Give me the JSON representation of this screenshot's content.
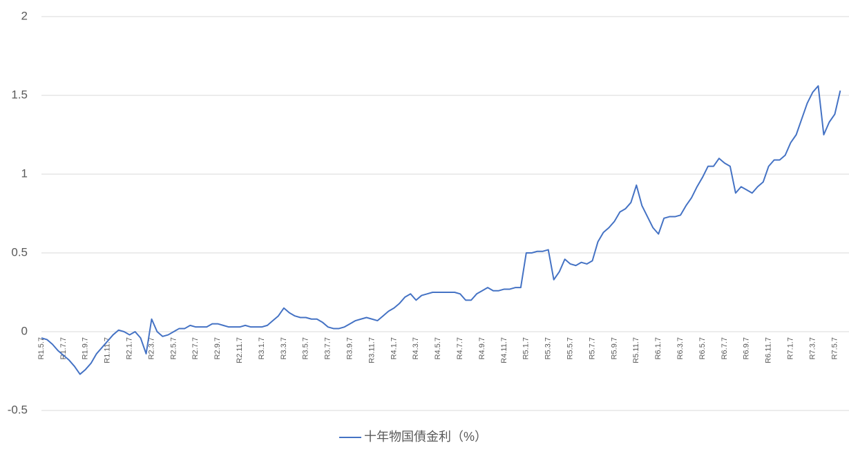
{
  "chart_data": {
    "type": "line",
    "categories": [
      "R1.5.7",
      null,
      null,
      null,
      "R1.7.7",
      null,
      null,
      null,
      "R1.9.7",
      null,
      null,
      null,
      "R1.11.7",
      null,
      null,
      null,
      "R2.1.7",
      null,
      null,
      null,
      "R2.3.7",
      null,
      null,
      null,
      "R2.5.7",
      null,
      null,
      null,
      "R2.7.7",
      null,
      null,
      null,
      "R2.9.7",
      null,
      null,
      null,
      "R2.11.7",
      null,
      null,
      null,
      "R3.1.7",
      null,
      null,
      null,
      "R3.3.7",
      null,
      null,
      null,
      "R3.5.7",
      null,
      null,
      null,
      "R3.7.7",
      null,
      null,
      null,
      "R3.9.7",
      null,
      null,
      null,
      "R3.11.7",
      null,
      null,
      null,
      "R4.1.7",
      null,
      null,
      null,
      "R4.3.7",
      null,
      null,
      null,
      "R4.5.7",
      null,
      null,
      null,
      "R4.7.7",
      null,
      null,
      null,
      "R4.9.7",
      null,
      null,
      null,
      "R4.11.7",
      null,
      null,
      null,
      "R5.1.7",
      null,
      null,
      null,
      "R5.3.7",
      null,
      null,
      null,
      "R5.5.7",
      null,
      null,
      null,
      "R5.7.7",
      null,
      null,
      null,
      "R5.9.7",
      null,
      null,
      null,
      "R5.11.7",
      null,
      null,
      null,
      "R6.1.7",
      null,
      null,
      null,
      "R6.3.7",
      null,
      null,
      null,
      "R6.5.7",
      null,
      null,
      null,
      "R6.7.7",
      null,
      null,
      null,
      "R6.9.7",
      null,
      null,
      null,
      "R6.11.7",
      null,
      null,
      null,
      "R7.1.7",
      null,
      null,
      null,
      "R7.3.7",
      null,
      null,
      null,
      "R7.5.7",
      null
    ],
    "series": [
      {
        "name": "十年物国債金利（%）",
        "color": "#4472c4",
        "values": [
          -0.04,
          -0.05,
          -0.08,
          -0.12,
          -0.15,
          -0.18,
          -0.22,
          -0.27,
          -0.24,
          -0.2,
          -0.14,
          -0.1,
          -0.06,
          -0.02,
          0.01,
          0.0,
          -0.02,
          0.0,
          -0.04,
          -0.14,
          0.08,
          0.0,
          -0.03,
          -0.02,
          0.0,
          0.02,
          0.02,
          0.04,
          0.03,
          0.03,
          0.03,
          0.05,
          0.05,
          0.04,
          0.03,
          0.03,
          0.03,
          0.04,
          0.03,
          0.03,
          0.03,
          0.04,
          0.07,
          0.1,
          0.15,
          0.12,
          0.1,
          0.09,
          0.09,
          0.08,
          0.08,
          0.06,
          0.03,
          0.02,
          0.02,
          0.03,
          0.05,
          0.07,
          0.08,
          0.09,
          0.08,
          0.07,
          0.1,
          0.13,
          0.15,
          0.18,
          0.22,
          0.24,
          0.2,
          0.23,
          0.24,
          0.25,
          0.25,
          0.25,
          0.25,
          0.25,
          0.24,
          0.2,
          0.2,
          0.24,
          0.26,
          0.28,
          0.26,
          0.26,
          0.27,
          0.27,
          0.28,
          0.28,
          0.5,
          0.5,
          0.51,
          0.51,
          0.52,
          0.33,
          0.38,
          0.46,
          0.43,
          0.42,
          0.44,
          0.43,
          0.45,
          0.57,
          0.63,
          0.66,
          0.7,
          0.76,
          0.78,
          0.82,
          0.93,
          0.8,
          0.73,
          0.66,
          0.62,
          0.72,
          0.73,
          0.73,
          0.74,
          0.8,
          0.85,
          0.92,
          0.98,
          1.05,
          1.05,
          1.1,
          1.07,
          1.05,
          0.88,
          0.92,
          0.9,
          0.88,
          0.92,
          0.95,
          1.05,
          1.09,
          1.09,
          1.12,
          1.2,
          1.25,
          1.35,
          1.45,
          1.52,
          1.56,
          1.25,
          1.33,
          1.38,
          1.53
        ]
      }
    ],
    "ylim": [
      -0.5,
      2
    ],
    "yticks": [
      -0.5,
      0,
      0.5,
      1,
      1.5,
      2
    ],
    "grid": true,
    "legend": "bottom"
  }
}
